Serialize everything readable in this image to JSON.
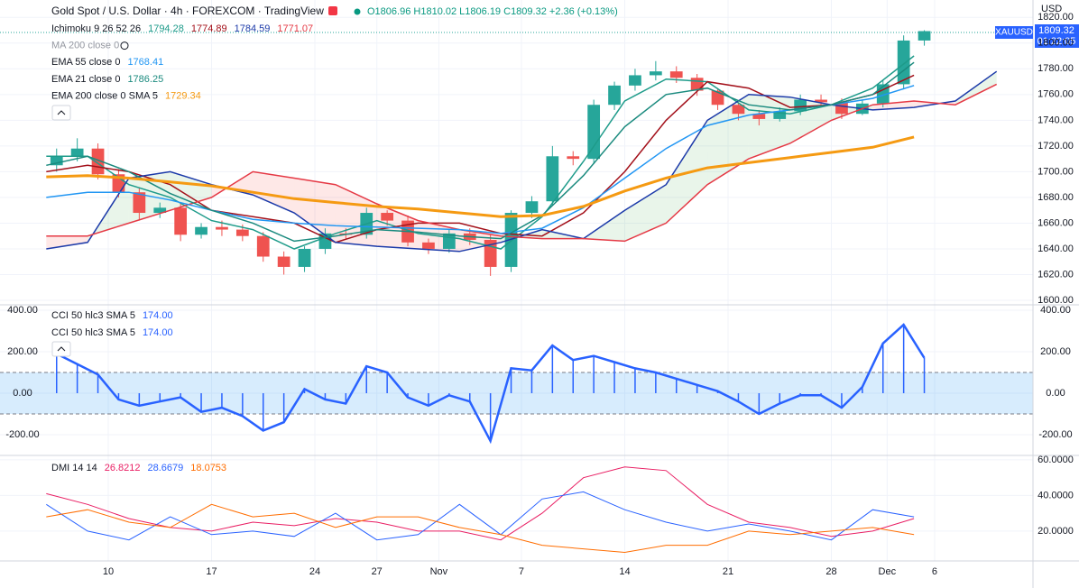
{
  "header": {
    "title": "Gold Spot / U.S. Dollar · 4h · FOREXCOM · TradingView",
    "ohlc": [
      "O1806.96",
      "H1810.02",
      "L1806.19",
      "C1809.32",
      "+2.36 (+0.13%)"
    ]
  },
  "currency": "USD",
  "price_tag": {
    "symbol": "XAUUSD",
    "price": "1809.32",
    "countdown": "01:22:05"
  },
  "chart_data": [
    {
      "type": "candlestick",
      "color_up": "#26a69a",
      "color_down": "#ef5350",
      "x": [
        -2.5,
        -1.5,
        -0.5,
        0.5,
        1.5,
        2.5,
        3.5,
        4.5,
        5.5,
        6.5,
        7.5,
        8.5,
        9.5,
        10.5,
        11.5,
        12.5,
        13.5,
        14.5,
        15.5,
        16.5,
        17.5,
        18.5,
        19.5,
        20.5,
        21.5,
        22.5,
        23.5,
        24.5,
        25.5,
        26.5,
        27.5,
        28.5,
        29.5,
        30.5,
        31.5,
        32.5,
        33.5,
        34.5,
        35.5,
        36.5,
        37.5,
        38.5,
        39.5
      ],
      "open": [
        1705,
        1712,
        1718,
        1698,
        1684,
        1668,
        1672,
        1651,
        1657,
        1655,
        1650,
        1634,
        1626,
        1640,
        1652,
        1651,
        1668,
        1662,
        1645,
        1640,
        1652,
        1647,
        1626,
        1668,
        1677,
        1712,
        1710,
        1752,
        1767,
        1775,
        1778,
        1773,
        1763,
        1752,
        1745,
        1741,
        1747,
        1756,
        1754,
        1745,
        1753,
        1768,
        1802
      ],
      "high": [
        1718,
        1726,
        1722,
        1702,
        1688,
        1676,
        1675,
        1660,
        1662,
        1659,
        1653,
        1638,
        1642,
        1656,
        1656,
        1672,
        1670,
        1666,
        1648,
        1655,
        1656,
        1651,
        1670,
        1681,
        1720,
        1716,
        1756,
        1770,
        1780,
        1786,
        1782,
        1776,
        1765,
        1754,
        1748,
        1750,
        1760,
        1760,
        1757,
        1756,
        1771,
        1806,
        1810.02
      ],
      "low": [
        1700,
        1708,
        1694,
        1680,
        1662,
        1664,
        1646,
        1648,
        1650,
        1646,
        1630,
        1620,
        1622,
        1636,
        1647,
        1648,
        1658,
        1642,
        1636,
        1637,
        1643,
        1619,
        1622,
        1664,
        1674,
        1705,
        1706,
        1748,
        1763,
        1771,
        1769,
        1759,
        1748,
        1740,
        1736,
        1739,
        1744,
        1750,
        1741,
        1744,
        1750,
        1764,
        1798
      ],
      "close": [
        1712,
        1718,
        1698,
        1684,
        1668,
        1672,
        1651,
        1657,
        1655,
        1650,
        1634,
        1626,
        1640,
        1652,
        1651,
        1668,
        1662,
        1645,
        1640,
        1652,
        1647,
        1626,
        1668,
        1677,
        1712,
        1710,
        1752,
        1767,
        1775,
        1778,
        1773,
        1763,
        1752,
        1745,
        1741,
        1747,
        1756,
        1754,
        1745,
        1753,
        1768,
        1802,
        1809.32
      ],
      "xlim": [
        -5.24,
        44.76
      ],
      "xticks": [
        {
          "value": 0,
          "label": "10"
        },
        {
          "value": 5,
          "label": "17"
        },
        {
          "value": 10,
          "label": "24"
        },
        {
          "value": 13,
          "label": "27"
        },
        {
          "value": 16,
          "label": "Nov"
        },
        {
          "value": 20,
          "label": "7"
        },
        {
          "value": 25,
          "label": "14"
        },
        {
          "value": 30,
          "label": "21"
        },
        {
          "value": 35,
          "label": "28"
        },
        {
          "value": 37.7,
          "label": "Dec"
        },
        {
          "value": 40,
          "label": "6"
        }
      ],
      "ylim": [
        1596.5,
        1830
      ],
      "yticks": [
        {
          "value": 1600,
          "label": "1600.00"
        },
        {
          "value": 1620,
          "label": "1620.00"
        },
        {
          "value": 1640,
          "label": "1640.00"
        },
        {
          "value": 1660,
          "label": "1660.00"
        },
        {
          "value": 1680,
          "label": "1680.00"
        },
        {
          "value": 1700,
          "label": "1700.00"
        },
        {
          "value": 1720,
          "label": "1720.00"
        },
        {
          "value": 1740,
          "label": "1740.00"
        },
        {
          "value": 1760,
          "label": "1760.00"
        },
        {
          "value": 1780,
          "label": "1780.00"
        },
        {
          "value": 1800,
          "label": "1800.00"
        },
        {
          "value": 1820,
          "label": "1820.00"
        }
      ],
      "cloud_colors": [
        "rgba(76,175,80,0.12)",
        "rgba(244,67,54,0.12)"
      ],
      "indicators": [
        {
          "name": "Ichimoku 9 26 52 26",
          "cloud": [
            2,
            3
          ],
          "lines": [
            {
              "color": "#1e9b8a",
              "readout": "1794.28",
              "x": [
                -3,
                -1,
                1,
                3,
                5,
                7,
                9,
                11,
                13,
                15,
                17,
                19,
                21,
                23,
                25,
                27,
                29,
                31,
                33,
                35,
                37,
                39
              ],
              "values": [
                1712,
                1712,
                1690,
                1680,
                1662,
                1655,
                1640,
                1652,
                1662,
                1652,
                1648,
                1640,
                1665,
                1708,
                1755,
                1772,
                1770,
                1748,
                1745,
                1752,
                1765,
                1790
              ]
            },
            {
              "color": "#a3101a",
              "readout": "1774.89",
              "x": [
                -3,
                -1,
                1,
                3,
                5,
                7,
                9,
                11,
                13,
                15,
                17,
                19,
                21,
                23,
                25,
                27,
                29,
                31,
                33,
                35,
                37,
                39
              ],
              "values": [
                1700,
                1705,
                1700,
                1690,
                1670,
                1665,
                1660,
                1645,
                1655,
                1660,
                1660,
                1652,
                1650,
                1668,
                1700,
                1740,
                1770,
                1765,
                1750,
                1752,
                1760,
                1775
              ]
            },
            {
              "color": "#1c3aa9",
              "readout": "1784.59",
              "x": [
                -3,
                -1,
                1,
                3,
                5,
                7,
                9,
                11,
                13,
                15,
                17,
                19,
                21,
                23,
                25,
                27,
                29,
                31,
                33,
                35,
                37,
                39,
                41,
                43
              ],
              "values": [
                1640,
                1645,
                1695,
                1700,
                1690,
                1682,
                1668,
                1645,
                1642,
                1640,
                1638,
                1645,
                1655,
                1648,
                1670,
                1690,
                1740,
                1760,
                1758,
                1752,
                1748,
                1750,
                1755,
                1778
              ]
            },
            {
              "color": "#e53945",
              "readout": "1771.07",
              "x": [
                -3,
                -1,
                1,
                3,
                5,
                7,
                9,
                11,
                13,
                15,
                17,
                19,
                21,
                23,
                25,
                27,
                29,
                31,
                33,
                35,
                37,
                39,
                41,
                43
              ],
              "values": [
                1650,
                1650,
                1660,
                1670,
                1680,
                1700,
                1695,
                1690,
                1675,
                1662,
                1655,
                1650,
                1648,
                1648,
                1646,
                1660,
                1690,
                1710,
                1722,
                1740,
                1752,
                1755,
                1752,
                1768
              ]
            }
          ]
        },
        {
          "name": "MA 200 close 0",
          "visible": false
        },
        {
          "name": "EMA 55 close 0",
          "lines": [
            {
              "color": "#2196f3",
              "readout": "1768.41",
              "x": [
                -3,
                -1,
                1,
                3,
                5,
                7,
                9,
                11,
                13,
                15,
                17,
                19,
                21,
                23,
                25,
                27,
                29,
                31,
                33,
                35,
                37,
                39
              ],
              "values": [
                1680,
                1684,
                1684,
                1678,
                1670,
                1663,
                1660,
                1658,
                1657,
                1656,
                1655,
                1652,
                1656,
                1672,
                1695,
                1718,
                1736,
                1744,
                1748,
                1752,
                1757,
                1767
              ]
            }
          ]
        },
        {
          "name": "EMA 21 close 0",
          "lines": [
            {
              "color": "#1a8a7e",
              "readout": "1786.25",
              "x": [
                -3,
                -1,
                1,
                3,
                5,
                7,
                9,
                11,
                13,
                15,
                17,
                19,
                21,
                23,
                25,
                27,
                29,
                31,
                33,
                35,
                37,
                39
              ],
              "values": [
                1705,
                1712,
                1700,
                1683,
                1670,
                1660,
                1646,
                1650,
                1655,
                1653,
                1650,
                1648,
                1666,
                1697,
                1735,
                1760,
                1765,
                1752,
                1748,
                1752,
                1760,
                1785
              ]
            }
          ]
        },
        {
          "name": "EMA 200 close 0 SMA 5",
          "lines": [
            {
              "color": "#f59a12",
              "width": 3,
              "readout": "1729.34",
              "x": [
                -3,
                -1,
                1,
                3,
                5,
                7,
                9,
                11,
                13,
                15,
                17,
                19,
                21,
                23,
                25,
                27,
                29,
                31,
                33,
                35,
                37,
                39
              ],
              "values": [
                1696,
                1697,
                1695,
                1692,
                1689,
                1684,
                1679,
                1676,
                1673,
                1671,
                1668,
                1665,
                1666,
                1673,
                1685,
                1695,
                1703,
                1707,
                1711,
                1715,
                1719,
                1727
              ]
            }
          ]
        }
      ]
    },
    {
      "type": "bar",
      "color": "#2962ff",
      "legend": [
        {
          "name": "CCI 50 hlc3 SMA 5",
          "readout": "174.00"
        },
        {
          "name": "CCI 50 hlc3 SMA 5",
          "readout": "174.00"
        }
      ],
      "x": [
        -2.5,
        -1.5,
        -0.5,
        0.5,
        1.5,
        2.5,
        3.5,
        4.5,
        5.5,
        6.5,
        7.5,
        8.5,
        9.5,
        10.5,
        11.5,
        12.5,
        13.5,
        14.5,
        15.5,
        16.5,
        17.5,
        18.5,
        19.5,
        20.5,
        21.5,
        22.5,
        23.5,
        24.5,
        25.5,
        26.5,
        27.5,
        28.5,
        29.5,
        30.5,
        31.5,
        32.5,
        33.5,
        34.5,
        35.5,
        36.5,
        37.5,
        38.5,
        39.5
      ],
      "values": [
        190,
        140,
        90,
        -30,
        -60,
        -40,
        -20,
        -90,
        -70,
        -110,
        -180,
        -140,
        20,
        -30,
        -50,
        130,
        100,
        -20,
        -60,
        -10,
        -40,
        -230,
        120,
        110,
        230,
        160,
        180,
        150,
        120,
        100,
        70,
        40,
        10,
        -40,
        -100,
        -50,
        -10,
        -10,
        -70,
        30,
        240,
        330,
        170
      ],
      "band": [
        -100,
        100
      ],
      "band_color": "rgba(33,150,243,0.18)",
      "ylim": [
        -300,
        426
      ],
      "yticks": [
        {
          "value": -200,
          "label": "-200.00"
        },
        {
          "value": 0,
          "label": "0.00"
        },
        {
          "value": 200,
          "label": "200.00"
        },
        {
          "value": 400,
          "label": "400.00"
        }
      ]
    },
    {
      "type": "line",
      "name": "DMI 14 14",
      "series": [
        {
          "color": "#e91e63",
          "readout": "26.8212",
          "values": [
            41,
            35,
            27,
            22,
            20,
            25,
            23,
            27,
            25,
            20,
            20,
            15,
            30,
            50,
            56,
            54,
            35,
            25,
            22,
            17,
            20,
            27
          ]
        },
        {
          "color": "#2962ff",
          "readout": "28.6679",
          "values": [
            35,
            20,
            15,
            28,
            18,
            20,
            17,
            30,
            15,
            18,
            35,
            18,
            38,
            42,
            32,
            25,
            20,
            24,
            20,
            15,
            32,
            28
          ]
        },
        {
          "color": "#ff6d00",
          "readout": "18.0753",
          "values": [
            28,
            32,
            25,
            22,
            35,
            28,
            30,
            22,
            28,
            28,
            22,
            18,
            12,
            10,
            8,
            12,
            12,
            20,
            18,
            20,
            22,
            18
          ]
        }
      ],
      "x": [
        -3,
        -1,
        1,
        3,
        5,
        7,
        9,
        11,
        13,
        15,
        17,
        19,
        21,
        23,
        25,
        27,
        29,
        31,
        33,
        35,
        37,
        39
      ],
      "ylim": [
        3.2,
        62.5
      ],
      "yticks": [
        {
          "value": 20,
          "label": "20.0000"
        },
        {
          "value": 40,
          "label": "40.0000"
        },
        {
          "value": 60,
          "label": "60.0000"
        }
      ]
    }
  ]
}
